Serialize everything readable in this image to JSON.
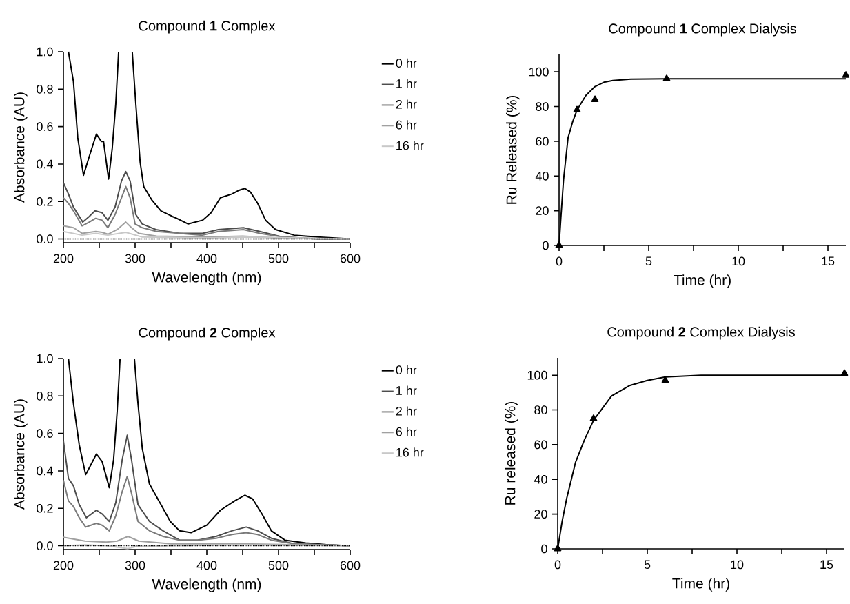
{
  "chart_data": [
    {
      "type": "line",
      "title": "Compound **1** Complex",
      "xlabel": "Wavelength (nm)",
      "ylabel": "Absorbance (AU)",
      "xlim": [
        200,
        600
      ],
      "ylim": [
        -0.02,
        1.0
      ],
      "xticks": [
        200,
        {
          "value": 250,
          "label": null
        },
        300,
        {
          "value": 350,
          "label": null
        },
        400,
        {
          "value": 450,
          "label": null
        },
        500,
        {
          "value": 550,
          "label": null
        },
        600
      ],
      "yticks": [
        {
          "value": 0,
          "label": "0.0"
        },
        {
          "value": 0.2,
          "label": "0.2"
        },
        {
          "value": 0.4,
          "label": "0.4"
        },
        {
          "value": 0.6,
          "label": "0.6"
        },
        {
          "value": 0.8,
          "label": "0.8"
        },
        {
          "value": 1.0,
          "label": "1.0"
        }
      ],
      "legend": "right",
      "ref_lines": [
        {
          "axis": "y",
          "value": 0,
          "color": "#000000",
          "line_style": "dotted"
        }
      ],
      "series": [
        {
          "name": "0 hr",
          "color": "#000000",
          "x": [
            207,
            214,
            220,
            228,
            236,
            246,
            253,
            256,
            263,
            268,
            273,
            277,
            285,
            296,
            301,
            307,
            312,
            323,
            336,
            352,
            358,
            374,
            394,
            406,
            419,
            435,
            445,
            453,
            461,
            471,
            482,
            496,
            522,
            554,
            600
          ],
          "values": [
            1.0,
            0.84,
            0.54,
            0.34,
            0.44,
            0.56,
            0.52,
            0.52,
            0.32,
            0.48,
            0.72,
            1.0,
            null,
            1.0,
            0.72,
            0.41,
            0.28,
            0.21,
            0.15,
            0.12,
            0.11,
            0.08,
            0.1,
            0.14,
            0.22,
            0.24,
            0.26,
            0.27,
            0.25,
            0.19,
            0.1,
            0.05,
            0.02,
            0.01,
            0.0
          ]
        },
        {
          "name": "1 hr",
          "color": "#4d4d4d",
          "x": [
            200,
            207,
            214,
            227,
            236,
            244,
            254,
            262,
            272,
            281,
            287,
            293,
            301,
            310,
            329,
            362,
            394,
            416,
            451,
            474,
            506,
            554,
            600
          ],
          "values": [
            0.3,
            0.24,
            0.17,
            0.09,
            0.12,
            0.15,
            0.14,
            0.1,
            0.17,
            0.31,
            0.36,
            0.31,
            0.13,
            0.08,
            0.05,
            0.03,
            0.03,
            0.05,
            0.06,
            0.04,
            0.01,
            0.0,
            0.0
          ]
        },
        {
          "name": "2 hr",
          "color": "#7a7a7a",
          "x": [
            200,
            207,
            214,
            226,
            236,
            245,
            254,
            262,
            272,
            281,
            287,
            293,
            300,
            310,
            330,
            362,
            394,
            416,
            451,
            474,
            506,
            554,
            600
          ],
          "values": [
            0.22,
            0.19,
            0.15,
            0.07,
            0.09,
            0.11,
            0.1,
            0.06,
            0.13,
            0.22,
            0.28,
            0.22,
            0.08,
            0.06,
            0.04,
            0.03,
            0.02,
            0.04,
            0.05,
            0.03,
            0.01,
            0.0,
            0.0
          ]
        },
        {
          "name": "6 hr",
          "color": "#a0a0a0",
          "x": [
            200,
            214,
            226,
            245,
            254,
            262,
            275,
            287,
            295,
            305,
            330,
            400,
            450,
            500,
            600
          ],
          "values": [
            0.07,
            0.06,
            0.03,
            0.04,
            0.035,
            0.025,
            0.05,
            0.09,
            0.06,
            0.03,
            0.015,
            0.01,
            0.015,
            0.005,
            0.0
          ]
        },
        {
          "name": "16 hr",
          "color": "#c8c8c8",
          "x": [
            200,
            226,
            245,
            262,
            287,
            310,
            400,
            450,
            600
          ],
          "values": [
            0.04,
            0.02,
            0.03,
            0.02,
            0.035,
            0.01,
            0.005,
            0.01,
            0.0
          ]
        }
      ]
    },
    {
      "type": "scatter",
      "title": "Compound **1** Complex Dialysis",
      "xlabel": "Time (hr)",
      "ylabel": "Ru Released (%)",
      "xlim": [
        0,
        16
      ],
      "ylim": [
        0,
        110
      ],
      "xticks": [
        0,
        {
          "value": 2.5,
          "label": null
        },
        5,
        {
          "value": 7.5,
          "label": null
        },
        10,
        {
          "value": 12.5,
          "label": null
        },
        15
      ],
      "yticks": [
        0,
        20,
        40,
        60,
        80,
        100
      ],
      "series": [
        {
          "type": "scatter",
          "marker": "triangle",
          "color": "#000000",
          "x": [
            0,
            1,
            2,
            6,
            16
          ],
          "values": [
            0,
            78,
            84,
            96,
            98
          ]
        },
        {
          "type": "line",
          "color": "#000000",
          "x": [
            0,
            0.1,
            0.25,
            0.5,
            0.75,
            1,
            1.5,
            2,
            2.5,
            3,
            4,
            6,
            16
          ],
          "values": [
            0,
            16,
            38,
            62,
            71,
            78,
            86.5,
            91.5,
            94,
            95,
            95.8,
            96,
            96
          ]
        }
      ]
    },
    {
      "type": "line",
      "title": "Compound **2** Complex",
      "xlabel": "Wavelength (nm)",
      "ylabel": "Absorbance (AU)",
      "xlim": [
        200,
        600
      ],
      "ylim": [
        -0.02,
        1.0
      ],
      "xticks": [
        200,
        {
          "value": 250,
          "label": null
        },
        300,
        {
          "value": 350,
          "label": null
        },
        400,
        {
          "value": 450,
          "label": null
        },
        500,
        {
          "value": 550,
          "label": null
        },
        600
      ],
      "yticks": [
        {
          "value": 0,
          "label": "0.0"
        },
        {
          "value": 0.2,
          "label": "0.2"
        },
        {
          "value": 0.4,
          "label": "0.4"
        },
        {
          "value": 0.6,
          "label": "0.6"
        },
        {
          "value": 0.8,
          "label": "0.8"
        },
        {
          "value": 1.0,
          "label": "1.0"
        }
      ],
      "legend": "right",
      "ref_lines": [
        {
          "axis": "y",
          "value": 0,
          "color": "#000000",
          "line_style": "dotted"
        }
      ],
      "series": [
        {
          "name": "0 hr",
          "color": "#000000",
          "x": [
            207,
            214,
            222,
            231,
            238,
            246,
            254,
            264,
            270,
            275,
            279,
            290,
            299,
            304,
            310,
            320,
            336,
            349,
            362,
            378,
            400,
            419,
            439,
            453,
            464,
            477,
            490,
            509,
            538,
            570,
            600
          ],
          "values": [
            1.0,
            0.76,
            0.54,
            0.38,
            0.43,
            0.49,
            0.45,
            0.31,
            0.46,
            0.72,
            1.0,
            null,
            1.0,
            0.76,
            0.52,
            0.33,
            0.22,
            0.13,
            0.08,
            0.07,
            0.11,
            0.19,
            0.24,
            0.27,
            0.25,
            0.17,
            0.08,
            0.03,
            0.015,
            0.005,
            0.0
          ]
        },
        {
          "name": "1 hr",
          "color": "#4d4d4d",
          "x": [
            200,
            207,
            214,
            222,
            232,
            246,
            254,
            264,
            273,
            282,
            289,
            295,
            304,
            320,
            339,
            362,
            387,
            413,
            435,
            455,
            471,
            490,
            522,
            600
          ],
          "values": [
            0.56,
            0.36,
            0.32,
            0.22,
            0.15,
            0.19,
            0.17,
            0.13,
            0.23,
            0.46,
            0.59,
            0.46,
            0.22,
            0.13,
            0.08,
            0.03,
            0.03,
            0.05,
            0.08,
            0.1,
            0.08,
            0.04,
            0.01,
            0.0
          ]
        },
        {
          "name": "2 hr",
          "color": "#7a7a7a",
          "x": [
            200,
            207,
            214,
            222,
            231,
            246,
            254,
            264,
            273,
            282,
            289,
            295,
            304,
            320,
            339,
            362,
            387,
            413,
            435,
            455,
            471,
            490,
            522,
            600
          ],
          "values": [
            0.35,
            0.24,
            0.21,
            0.15,
            0.1,
            0.12,
            0.11,
            0.08,
            0.16,
            0.29,
            0.37,
            0.28,
            0.13,
            0.08,
            0.05,
            0.03,
            0.03,
            0.04,
            0.06,
            0.07,
            0.06,
            0.03,
            0.01,
            0.0
          ]
        },
        {
          "name": "6 hr",
          "color": "#a0a0a0",
          "x": [
            200,
            230,
            260,
            275,
            290,
            305,
            350,
            450,
            600
          ],
          "values": [
            0.045,
            0.025,
            0.02,
            0.025,
            0.05,
            0.025,
            0.01,
            0.01,
            0.0
          ]
        },
        {
          "name": "16 hr",
          "color": "#c8c8c8",
          "x": [
            200,
            230,
            260,
            280,
            290,
            300,
            350,
            450,
            600
          ],
          "values": [
            0.0,
            0.005,
            0.0,
            -0.01,
            -0.015,
            -0.005,
            0.0,
            0.005,
            0.0
          ]
        }
      ]
    },
    {
      "type": "scatter",
      "title": "Compound **2** Complex Dialysis",
      "xlabel": "Time (hr)",
      "ylabel": "Ru released (%)",
      "xlim": [
        0,
        16
      ],
      "ylim": [
        0,
        110
      ],
      "xticks": [
        0,
        {
          "value": 2.5,
          "label": null
        },
        5,
        {
          "value": 7.5,
          "label": null
        },
        10,
        {
          "value": 12.5,
          "label": null
        },
        15
      ],
      "yticks": [
        0,
        20,
        40,
        60,
        80,
        100
      ],
      "series": [
        {
          "type": "scatter",
          "marker": "triangle",
          "color": "#000000",
          "x": [
            0,
            2,
            6,
            16
          ],
          "values": [
            0,
            75,
            97,
            101
          ]
        },
        {
          "type": "line",
          "color": "#000000",
          "x": [
            0,
            0.25,
            0.5,
            1,
            1.5,
            2,
            3,
            4,
            5,
            6,
            8,
            16
          ],
          "values": [
            0,
            16,
            29,
            50,
            63,
            74,
            88,
            94,
            97,
            99,
            100,
            100
          ]
        }
      ]
    }
  ]
}
